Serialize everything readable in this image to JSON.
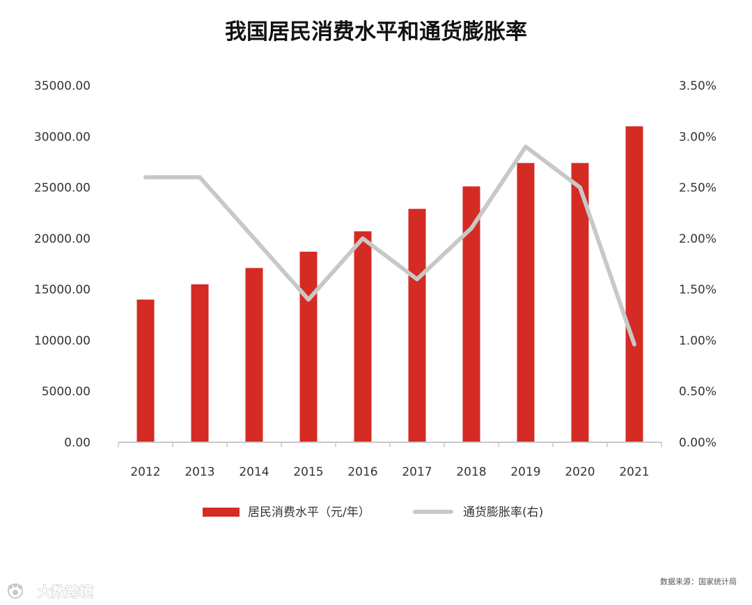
{
  "colors": {
    "bar": "#d42b24",
    "line": "#c8c8c8",
    "axis": "#c8c8c8",
    "text": "#333333"
  },
  "chart_data": {
    "type": "bar",
    "title": "我国居民消费水平和通货膨胀率",
    "categories": [
      "2012",
      "2013",
      "2014",
      "2015",
      "2016",
      "2017",
      "2018",
      "2019",
      "2020",
      "2021"
    ],
    "series": [
      {
        "name": "居民消费水平（元/年）",
        "type": "bar",
        "axis": "left",
        "values": [
          14000,
          15500,
          17100,
          18700,
          20700,
          22900,
          25100,
          27400,
          27400,
          31000
        ]
      },
      {
        "name": "通货膨胀率(右)",
        "type": "line",
        "axis": "right",
        "values": [
          2.6,
          2.6,
          2.0,
          1.4,
          2.0,
          1.6,
          2.1,
          2.9,
          2.5,
          0.96
        ]
      }
    ],
    "y_left": {
      "ylim": [
        0,
        35000
      ],
      "ticks": [
        "0.00",
        "5000.00",
        "10000.00",
        "15000.00",
        "20000.00",
        "25000.00",
        "30000.00",
        "35000.00"
      ]
    },
    "y_right": {
      "ylim": [
        0,
        3.5
      ],
      "ticks": [
        "0.00%",
        "0.50%",
        "1.00%",
        "1.50%",
        "2.00%",
        "2.50%",
        "3.00%",
        "3.50%"
      ]
    },
    "grid": false,
    "legend_position": "bottom",
    "source": "数据来源：国家统计局"
  },
  "watermark": {
    "text": "大数跨境",
    "icon": "paw-logo-icon"
  }
}
